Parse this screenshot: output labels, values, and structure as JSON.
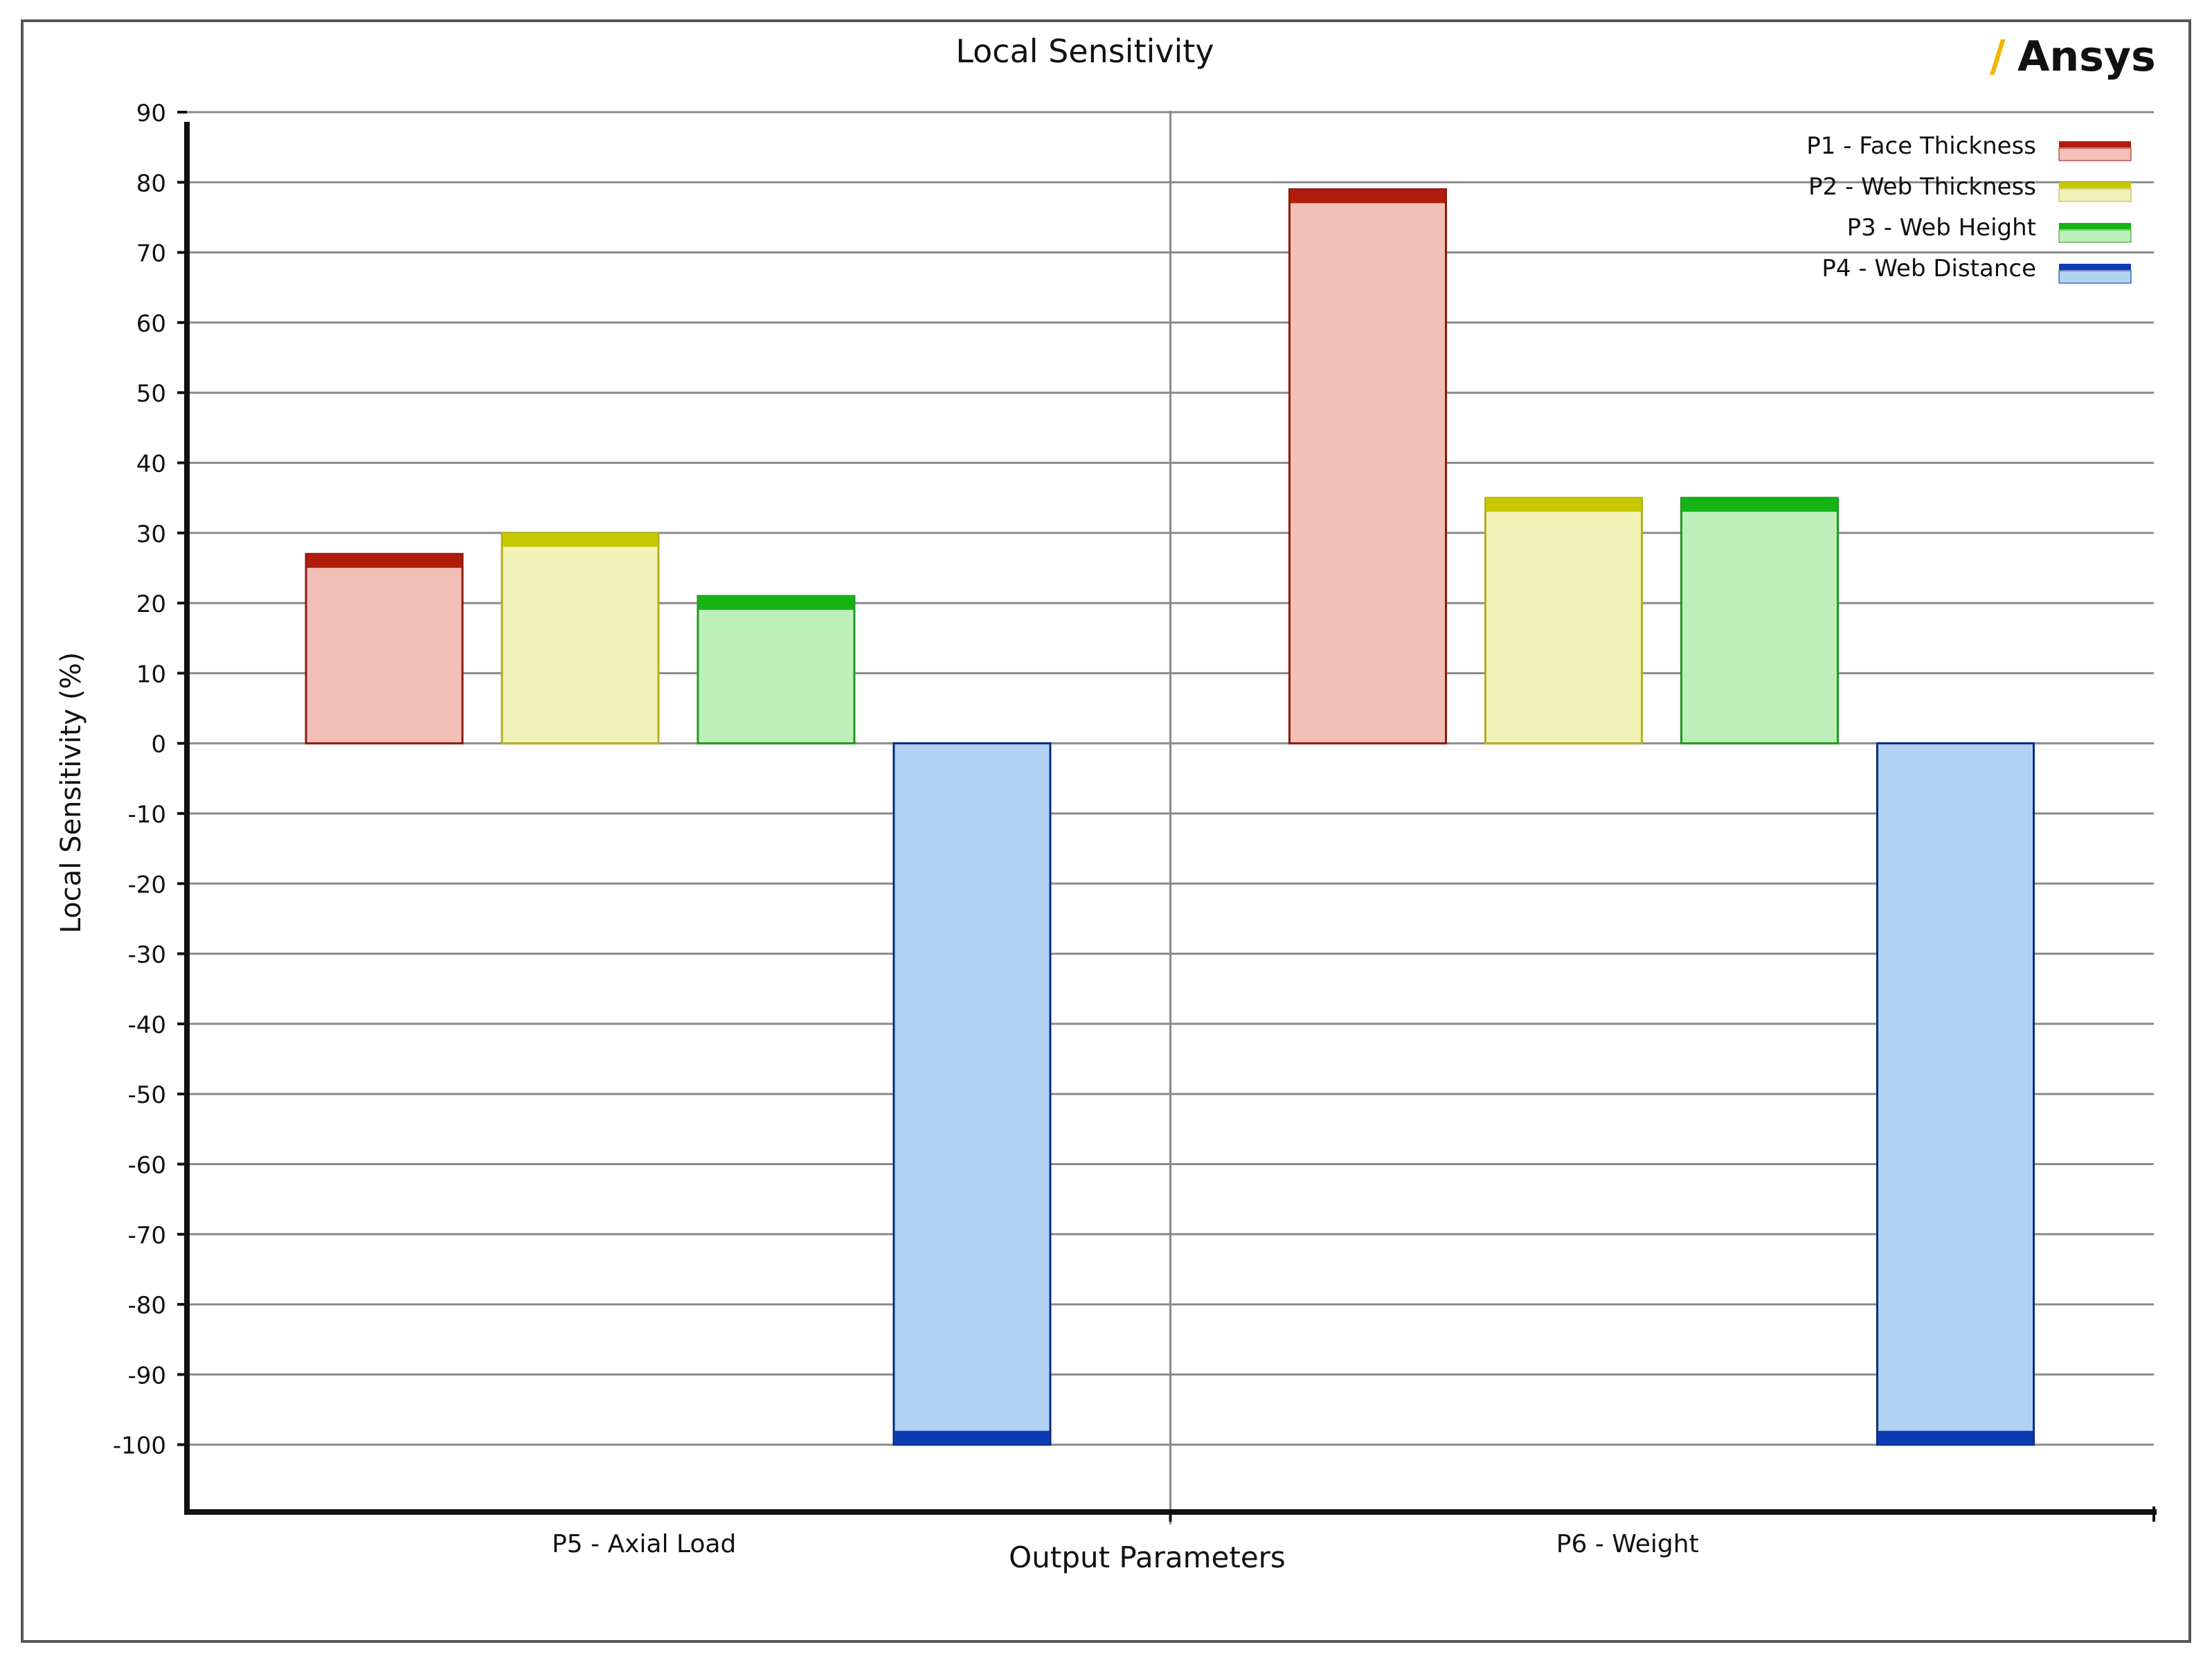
{
  "brand": {
    "logo_text": "Ansys",
    "logo_slash": "/",
    "accent": "#f2b600"
  },
  "chart_data": {
    "type": "bar",
    "title": "Local Sensitivity",
    "xlabel": "Output Parameters",
    "ylabel": "Local Sensitivity (%)",
    "ylim": [
      -100,
      90
    ],
    "yticks": [
      90,
      80,
      70,
      60,
      50,
      40,
      30,
      20,
      10,
      0,
      -10,
      -20,
      -30,
      -40,
      -50,
      -60,
      -70,
      -80,
      -90,
      -100
    ],
    "categories": [
      "P5 - Axial Load",
      "P6 - Weight"
    ],
    "series": [
      {
        "name": "P1 - Face Thickness",
        "values": [
          27,
          79
        ],
        "fill": "#f4c0b6",
        "cap": "#b01c0c",
        "edge": "#8a1a10"
      },
      {
        "name": "P2 - Web Thickness",
        "values": [
          30,
          35
        ],
        "fill": "#f2f2b8",
        "cap": "#c8c800",
        "edge": "#b0b020"
      },
      {
        "name": "P3 - Web Height",
        "values": [
          21,
          35
        ],
        "fill": "#bdf0b8",
        "cap": "#14b414",
        "edge": "#209a20"
      },
      {
        "name": "P4 - Web Distance",
        "values": [
          -100,
          -100
        ],
        "fill": "#b2d2f4",
        "cap": "#0c3cb4",
        "edge": "#0a2a80"
      }
    ],
    "grid": true,
    "legend_position": "top-right"
  }
}
